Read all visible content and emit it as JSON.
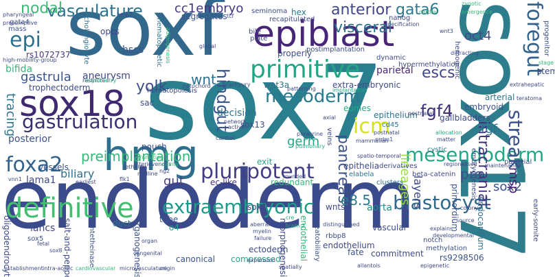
{
  "words": [
    {
      "text": "endoderm",
      "color": "#3b4a8a",
      "vertical": false
    },
    {
      "text": "sox7",
      "color": "#2a7f8e",
      "vertical": false
    },
    {
      "text": "sox17",
      "color": "#2e7d8c",
      "vertical": true
    },
    {
      "text": "soxf",
      "color": "#33688d",
      "vertical": false
    },
    {
      "text": "epiblast",
      "color": "#482677",
      "vertical": false
    },
    {
      "text": "sox18",
      "color": "#3f2a72",
      "vertical": false
    },
    {
      "text": "hmg",
      "color": "#2e6f8e",
      "vertical": false
    },
    {
      "text": "definitive",
      "color": "#44bf70",
      "vertical": false
    },
    {
      "text": "primitive",
      "color": "#21a685",
      "vertical": false
    },
    {
      "text": "gastrulation",
      "color": "#3b2f71",
      "vertical": false
    },
    {
      "text": "pluripotent",
      "color": "#433e85",
      "vertical": false
    },
    {
      "text": "extraembryonic",
      "color": "#1f9a8a",
      "vertical": false
    },
    {
      "text": "blastocyst",
      "color": "#31688e",
      "vertical": false
    },
    {
      "text": "mesendoderm",
      "color": "#22a884",
      "vertical": false
    },
    {
      "text": "foregut",
      "color": "#33638d",
      "vertical": true
    },
    {
      "text": "streak",
      "color": "#3b528b",
      "vertical": true
    },
    {
      "text": "icm",
      "color": "#d5e21a",
      "vertical": false
    },
    {
      "text": "vasculature",
      "color": "#2c728e",
      "vertical": false
    },
    {
      "text": "preimplantation",
      "color": "#35b779",
      "vertical": false
    },
    {
      "text": "foxa2",
      "color": "#33638d",
      "vertical": false
    },
    {
      "text": "fgf4",
      "color": "#3f2d76",
      "vertical": false
    },
    {
      "text": "epi",
      "color": "#2c728e",
      "vertical": false
    },
    {
      "text": "hindgut",
      "color": "#3a548c",
      "vertical": true
    },
    {
      "text": "mesoderm",
      "color": "#29798e",
      "vertical": false
    },
    {
      "text": "visceral",
      "color": "#2c728e",
      "vertical": false
    },
    {
      "text": "anterior",
      "color": "#3f4788",
      "vertical": false
    },
    {
      "text": "gata6",
      "color": "#2a788e",
      "vertical": false
    },
    {
      "text": "oct4",
      "color": "#3e4a89",
      "vertical": false
    },
    {
      "text": "gastrula",
      "color": "#3a548c",
      "vertical": false
    },
    {
      "text": "yolk",
      "color": "#3d4e8a",
      "vertical": false
    },
    {
      "text": "nodal",
      "color": "#3bbb75",
      "vertical": false
    },
    {
      "text": "cc1embryo",
      "color": "#453581",
      "vertical": false
    },
    {
      "text": "wnt",
      "color": "#2d708e",
      "vertical": false
    },
    {
      "text": "tracing",
      "color": "#2a788e",
      "vertical": true
    },
    {
      "text": "escs",
      "color": "#3f4788",
      "vertical": false
    },
    {
      "text": "pancreas",
      "color": "#3b528b",
      "vertical": true
    },
    {
      "text": "lineages",
      "color": "#9bd93c",
      "vertical": true
    },
    {
      "text": "germ",
      "color": "#22a884",
      "vertical": false
    },
    {
      "text": "biliary",
      "color": "#2e6e8e",
      "vertical": false
    },
    {
      "text": "lama1",
      "color": "#3e4a89",
      "vertical": false
    },
    {
      "text": "gut",
      "color": "#433e85",
      "vertical": false
    },
    {
      "text": "posterior",
      "color": "#3b528b",
      "vertical": false
    },
    {
      "text": "intracranial",
      "color": "#46327e",
      "vertical": true
    },
    {
      "text": "sox2",
      "color": "#3b528b",
      "vertical": false
    },
    {
      "text": "e8.5",
      "color": "#2a788e",
      "vertical": false
    },
    {
      "text": "pre",
      "color": "#3b528b",
      "vertical": false
    },
    {
      "text": "layers",
      "color": "#3e4989",
      "vertical": true
    },
    {
      "text": "fgf",
      "color": "#2d708e",
      "vertical": false
    },
    {
      "text": "msp",
      "color": "#481f70",
      "vertical": true
    },
    {
      "text": "arterial",
      "color": "#2c728e",
      "vertical": false
    },
    {
      "text": "embryoid",
      "color": "#3b528b",
      "vertical": false
    },
    {
      "text": "hex",
      "color": "#2a788e",
      "vertical": false
    },
    {
      "text": "primordium",
      "color": "#3b528b",
      "vertical": true
    },
    {
      "text": "aorta",
      "color": "#238a8d",
      "vertical": false
    },
    {
      "text": "wnts",
      "color": "#3e4a89",
      "vertical": false
    },
    {
      "text": "vascular",
      "color": "#3e4989",
      "vertical": false
    },
    {
      "text": "endocardium",
      "color": "#2e6f8e",
      "vertical": true
    },
    {
      "text": "parietal",
      "color": "#482677",
      "vertical": false
    },
    {
      "text": "aneurysm",
      "color": "#3e4989",
      "vertical": false
    },
    {
      "text": "hscs",
      "color": "#3b528b",
      "vertical": false
    },
    {
      "text": "rs1072737",
      "color": "#453781",
      "vertical": false
    },
    {
      "text": "mass",
      "color": "#3b528b",
      "vertical": false
    },
    {
      "text": "gata4",
      "color": "#3a548c",
      "vertical": false
    },
    {
      "text": "opcs",
      "color": "#414487",
      "vertical": false
    },
    {
      "text": "bifida",
      "color": "#35b779",
      "vertical": false
    },
    {
      "text": "trophectoderm",
      "color": "#3e4989",
      "vertical": false
    },
    {
      "text": "sac",
      "color": "#3e4989",
      "vertical": false
    },
    {
      "text": "segregates",
      "color": "#3b528b",
      "vertical": false
    },
    {
      "text": "postimplantation",
      "color": "#3e4989",
      "vertical": false
    },
    {
      "text": "extra-embryonic",
      "color": "#3e4989",
      "vertical": false
    },
    {
      "text": "wnt3a",
      "color": "#2c728e",
      "vertical": false
    },
    {
      "text": "decision",
      "color": "#2c728e",
      "vertical": false
    },
    {
      "text": "sox13",
      "color": "#3e4989",
      "vertical": false
    },
    {
      "text": "eomes",
      "color": "#22a884",
      "vertical": false
    },
    {
      "text": "epithelium",
      "color": "#2c728e",
      "vertical": false
    },
    {
      "text": "gallbladders",
      "color": "#3e4989",
      "vertical": false
    },
    {
      "text": "ec-like",
      "color": "#46327e",
      "vertical": false
    },
    {
      "text": "redundant",
      "color": "#35b779",
      "vertical": false
    },
    {
      "text": "pouch",
      "color": "#3b528b",
      "vertical": false
    },
    {
      "text": "vessels",
      "color": "#3b528b",
      "vertical": false
    },
    {
      "text": "veins",
      "color": "#3e4989",
      "vertical": true
    },
    {
      "text": "cd45",
      "color": "#2c728e",
      "vertical": false
    },
    {
      "text": "cystic",
      "color": "#2c728e",
      "vertical": false
    },
    {
      "text": "paraxial",
      "color": "#3b528b",
      "vertical": false
    },
    {
      "text": "exit",
      "color": "#22a884",
      "vertical": false
    },
    {
      "text": "sox4",
      "color": "#3e4989",
      "vertical": false
    },
    {
      "text": "tube",
      "color": "#3b528b",
      "vertical": false
    },
    {
      "text": "o4",
      "color": "#22a884",
      "vertical": false
    },
    {
      "text": "duct",
      "color": "#2c728e",
      "vertical": false
    },
    {
      "text": "iahcs",
      "color": "#3e4989",
      "vertical": false
    },
    {
      "text": "sox5",
      "color": "#3b528b",
      "vertical": false
    },
    {
      "text": "canonical",
      "color": "#3b528b",
      "vertical": false
    },
    {
      "text": "compressed",
      "color": "#22a884",
      "vertical": false
    },
    {
      "text": "ectoderm",
      "color": "#3e4989",
      "vertical": false
    },
    {
      "text": "endothelium",
      "color": "#3e4989",
      "vertical": false
    },
    {
      "text": "fate",
      "color": "#3b528b",
      "vertical": false
    },
    {
      "text": "commitment",
      "color": "#3e4989",
      "vertical": false
    },
    {
      "text": "notch",
      "color": "#3e4989",
      "vertical": false
    },
    {
      "text": "methylation",
      "color": "#3b528b",
      "vertical": false
    },
    {
      "text": "rbbp8",
      "color": "#3e4989",
      "vertical": false
    },
    {
      "text": "rs9298506",
      "color": "#3b528b",
      "vertical": false
    },
    {
      "text": "beta-catenin",
      "color": "#3e4989",
      "vertical": false
    },
    {
      "text": "clusters",
      "color": "#2c728e",
      "vertical": false
    },
    {
      "text": "derivatives",
      "color": "#3e4989",
      "vertical": false
    },
    {
      "text": "elabela",
      "color": "#2c728e",
      "vertical": false
    },
    {
      "text": "epithelia",
      "color": "#3e4989",
      "vertical": false
    },
    {
      "text": "endothelial",
      "color": "#35b779",
      "vertical": true
    },
    {
      "text": "pancreatobiliary",
      "color": "#3b528b",
      "vertical": true
    },
    {
      "text": "oligodendrocyte",
      "color": "#3e4989",
      "vertical": true
    },
    {
      "text": "salt-and-pepper",
      "color": "#3e4989",
      "vertical": true
    },
    {
      "text": "organogenesis",
      "color": "#3b528b",
      "vertical": true
    },
    {
      "text": "morphogenesis",
      "color": "#3e4989",
      "vertical": true
    },
    {
      "text": "pantetheinase",
      "color": "#3b528b",
      "vertical": true
    },
    {
      "text": "hematopoietic",
      "color": "#2c728e",
      "vertical": true
    },
    {
      "text": "cholangiocyte",
      "color": "#2c728e",
      "vertical": true
    },
    {
      "text": "hematopoiesis",
      "color": "#3e4989",
      "vertical": false
    },
    {
      "text": "hypermethylation",
      "color": "#3e4989",
      "vertical": false
    },
    {
      "text": "hemogenic",
      "color": "#3e4989",
      "vertical": true
    },
    {
      "text": "progenitor",
      "color": "#3b528b",
      "vertical": true
    },
    {
      "text": "early-somite",
      "color": "#3e4989",
      "vertical": true
    },
    {
      "text": "embryogenesis",
      "color": "#3e4989",
      "vertical": true
    },
    {
      "text": "stem",
      "color": "#3e4989",
      "vertical": false
    },
    {
      "text": "properly",
      "color": "#3e4989",
      "vertical": false
    },
    {
      "text": "dynamic",
      "color": "#3e4989",
      "vertical": false
    },
    {
      "text": "nanog",
      "color": "#3e4989",
      "vertical": false
    },
    {
      "text": "seminoma",
      "color": "#3e4989",
      "vertical": false
    },
    {
      "text": "recapitulated",
      "color": "#3e4989",
      "vertical": false
    },
    {
      "text": "bile",
      "color": "#3e4989",
      "vertical": false
    },
    {
      "text": "plate",
      "color": "#3e4989",
      "vertical": false
    },
    {
      "text": "presumptive",
      "color": "#3e4989",
      "vertical": false
    },
    {
      "text": "pharyngeal",
      "color": "#3e4989",
      "vertical": false
    },
    {
      "text": "high-mobility-group",
      "color": "#3e4989",
      "vertical": false
    },
    {
      "text": "restricted",
      "color": "#3e4989",
      "vertical": false
    },
    {
      "text": "notochord",
      "color": "#3e4989",
      "vertical": false
    },
    {
      "text": "brachyury",
      "color": "#3e4989",
      "vertical": false
    },
    {
      "text": "implantation",
      "color": "#22a884",
      "vertical": false
    },
    {
      "text": "patterning",
      "color": "#3e4989",
      "vertical": false
    },
    {
      "text": "axial",
      "color": "#3e4989",
      "vertical": false
    },
    {
      "text": "network",
      "color": "#3e4989",
      "vertical": false
    },
    {
      "text": "activin",
      "color": "#3e4989",
      "vertical": false
    },
    {
      "text": "cardiac",
      "color": "#3e4989",
      "vertical": false
    },
    {
      "text": "paracrine",
      "color": "#3e4989",
      "vertical": false
    },
    {
      "text": "pulmonary",
      "color": "#22a884",
      "vertical": false
    },
    {
      "text": "mammalian",
      "color": "#3e4989",
      "vertical": false
    },
    {
      "text": "postnatal",
      "color": "#3e4989",
      "vertical": false
    },
    {
      "text": "prdm1",
      "color": "#3e4989",
      "vertical": false
    },
    {
      "text": "matter",
      "color": "#3e4989",
      "vertical": false
    },
    {
      "text": "allocation",
      "color": "#22a884",
      "vertical": false
    },
    {
      "text": "teratoma",
      "color": "#3e4989",
      "vertical": false
    },
    {
      "text": "extrahepatic",
      "color": "#3e4989",
      "vertical": false
    },
    {
      "text": "spatio-temporal",
      "color": "#3e4989",
      "vertical": false
    },
    {
      "text": "regionalised",
      "color": "#3e4989",
      "vertical": false
    },
    {
      "text": "maintenance",
      "color": "#3e4989",
      "vertical": false
    },
    {
      "text": "lethality",
      "color": "#3e4989",
      "vertical": false
    },
    {
      "text": "midline",
      "color": "#3e4989",
      "vertical": false
    },
    {
      "text": "ng2",
      "color": "#3e4989",
      "vertical": false
    },
    {
      "text": "flk1",
      "color": "#3e4989",
      "vertical": false
    },
    {
      "text": "earliest",
      "color": "#3e4989",
      "vertical": false
    },
    {
      "text": "vnn1",
      "color": "#3e4989",
      "vertical": false
    },
    {
      "text": "rounded",
      "color": "#3e4989",
      "vertical": false
    },
    {
      "text": "aberrant",
      "color": "#3e4989",
      "vertical": false
    },
    {
      "text": "myelin",
      "color": "#3e4989",
      "vertical": false
    },
    {
      "text": "failure",
      "color": "#3e4989",
      "vertical": false
    },
    {
      "text": "cre",
      "color": "#22a884",
      "vertical": false
    },
    {
      "text": "tcam-2",
      "color": "#22a884",
      "vertical": false
    },
    {
      "text": "distinguished",
      "color": "#3e4989",
      "vertical": false
    },
    {
      "text": "postnatal",
      "color": "#3e4989",
      "vertical": false
    },
    {
      "text": "source",
      "color": "#3e4989",
      "vertical": false
    },
    {
      "text": "colony",
      "color": "#3e4989",
      "vertical": false
    },
    {
      "text": "explains",
      "color": "#3e4989",
      "vertical": false
    },
    {
      "text": "developmental",
      "color": "#3e4989",
      "vertical": false
    },
    {
      "text": "epigenetic",
      "color": "#3e4989",
      "vertical": false
    },
    {
      "text": "allantois",
      "color": "#3e4989",
      "vertical": false
    },
    {
      "text": "spatially",
      "color": "#3e4989",
      "vertical": false
    },
    {
      "text": "expansion",
      "color": "#3e4989",
      "vertical": false
    },
    {
      "text": "origin",
      "color": "#3e4989",
      "vertical": false
    },
    {
      "text": "congenital",
      "color": "#3e4989",
      "vertical": false
    },
    {
      "text": "establishment",
      "color": "#3e4989",
      "vertical": false
    },
    {
      "text": "intra-aortic",
      "color": "#3e4989",
      "vertical": false
    },
    {
      "text": "cardiovascular",
      "color": "#35b779",
      "vertical": false
    },
    {
      "text": "microvasculature",
      "color": "#3e4989",
      "vertical": false
    },
    {
      "text": "fetal",
      "color": "#3e4989",
      "vertical": false
    },
    {
      "text": "organ",
      "color": "#3e4989",
      "vertical": false
    },
    {
      "text": "sox8",
      "color": "#3e4989",
      "vertical": false
    },
    {
      "text": "transition",
      "color": "#35b779",
      "vertical": false
    },
    {
      "text": "arteriovenous",
      "color": "#3e4989",
      "vertical": false
    },
    {
      "text": "cavity",
      "color": "#35b779",
      "vertical": false
    },
    {
      "text": "global",
      "color": "#3e4989",
      "vertical": false
    },
    {
      "text": "asymmetry",
      "color": "#35b779",
      "vertical": false
    },
    {
      "text": "adipogenesis",
      "color": "#35b779",
      "vertical": true
    },
    {
      "text": "bmp2",
      "color": "#3e4989",
      "vertical": false
    },
    {
      "text": "tcf",
      "color": "#3e4989",
      "vertical": false
    },
    {
      "text": "specification",
      "color": "#3e4989",
      "vertical": false
    },
    {
      "text": "cardia",
      "color": "#35b779",
      "vertical": false
    },
    {
      "text": "zygotic",
      "color": "#35b779",
      "vertical": false
    },
    {
      "text": "emergence",
      "color": "#35b779",
      "vertical": false
    },
    {
      "text": "wnt3",
      "color": "#3e4989",
      "vertical": false
    },
    {
      "text": "diffracting",
      "color": "#3e4989",
      "vertical": false
    },
    {
      "text": "stage",
      "color": "#35b779",
      "vertical": false
    }
  ]
}
